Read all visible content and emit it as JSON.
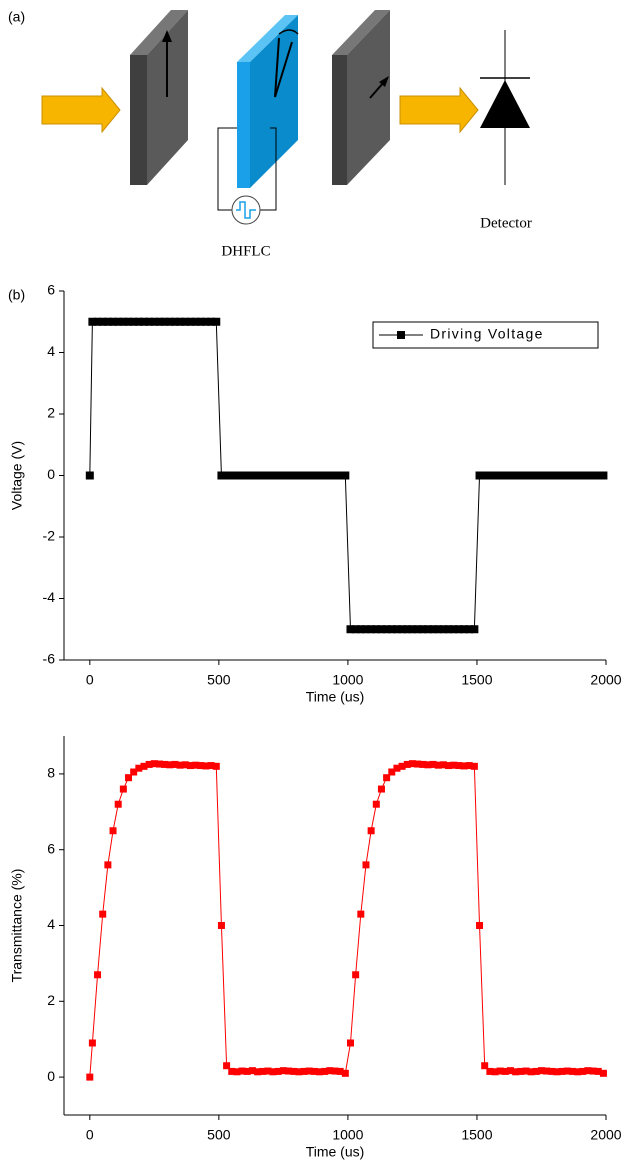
{
  "diagram": {
    "panel_label": "(a)",
    "labels": [
      "DHFLC",
      "Detector"
    ]
  },
  "chart_data": [
    {
      "type": "line",
      "panel_label": "(b)",
      "x_label": "Time (us)",
      "y_label": "Voltage (V)",
      "xlim": [
        -100,
        2000
      ],
      "xticks": [
        0,
        500,
        1000,
        1500,
        2000
      ],
      "ylim": [
        -6,
        6
      ],
      "yticks": [
        -6,
        -4,
        -2,
        0,
        2,
        4,
        6
      ],
      "legend": "upper right",
      "x": [
        0,
        10,
        30,
        50,
        70,
        90,
        110,
        130,
        150,
        170,
        190,
        210,
        230,
        250,
        270,
        290,
        310,
        330,
        350,
        370,
        390,
        410,
        430,
        450,
        470,
        490,
        510,
        530,
        550,
        570,
        590,
        610,
        630,
        650,
        670,
        690,
        710,
        730,
        750,
        770,
        790,
        810,
        830,
        850,
        870,
        890,
        910,
        930,
        950,
        970,
        990,
        1010,
        1030,
        1050,
        1070,
        1090,
        1110,
        1130,
        1150,
        1170,
        1190,
        1210,
        1230,
        1250,
        1270,
        1290,
        1310,
        1330,
        1350,
        1370,
        1390,
        1410,
        1430,
        1450,
        1470,
        1490,
        1510,
        1530,
        1550,
        1570,
        1590,
        1610,
        1630,
        1650,
        1670,
        1690,
        1710,
        1730,
        1750,
        1770,
        1790,
        1810,
        1830,
        1850,
        1870,
        1890,
        1910,
        1930,
        1950,
        1970,
        1990
      ],
      "series": [
        {
          "name": "Driving Voltage",
          "color": "#000000",
          "values": [
            0,
            5,
            5,
            5,
            5,
            5,
            5,
            5,
            5,
            5,
            5,
            5,
            5,
            5,
            5,
            5,
            5,
            5,
            5,
            5,
            5,
            5,
            5,
            5,
            5,
            5,
            0,
            0,
            0,
            0,
            0,
            0,
            0,
            0,
            0,
            0,
            0,
            0,
            0,
            0,
            0,
            0,
            0,
            0,
            0,
            0,
            0,
            0,
            0,
            0,
            0,
            -5,
            -5,
            -5,
            -5,
            -5,
            -5,
            -5,
            -5,
            -5,
            -5,
            -5,
            -5,
            -5,
            -5,
            -5,
            -5,
            -5,
            -5,
            -5,
            -5,
            -5,
            -5,
            -5,
            -5,
            -5,
            0,
            0,
            0,
            0,
            0,
            0,
            0,
            0,
            0,
            0,
            0,
            0,
            0,
            0,
            0,
            0,
            0,
            0,
            0,
            0,
            0,
            0,
            0,
            0,
            0
          ]
        }
      ]
    },
    {
      "type": "line",
      "x_label": "Time (us)",
      "y_label": "Transmittance (%)",
      "xlim": [
        -100,
        2000
      ],
      "xticks": [
        0,
        500,
        1000,
        1500,
        2000
      ],
      "ylim": [
        -1,
        9
      ],
      "yticks": [
        0,
        2,
        4,
        6,
        8
      ],
      "x": [
        0,
        10,
        30,
        50,
        70,
        90,
        110,
        130,
        150,
        170,
        190,
        210,
        230,
        250,
        270,
        290,
        310,
        330,
        350,
        370,
        390,
        410,
        430,
        450,
        470,
        490,
        510,
        530,
        550,
        570,
        590,
        610,
        630,
        650,
        670,
        690,
        710,
        730,
        750,
        770,
        790,
        810,
        830,
        850,
        870,
        890,
        910,
        930,
        950,
        970,
        990,
        1010,
        1030,
        1050,
        1070,
        1090,
        1110,
        1130,
        1150,
        1170,
        1190,
        1210,
        1230,
        1250,
        1270,
        1290,
        1310,
        1330,
        1350,
        1370,
        1390,
        1410,
        1430,
        1450,
        1470,
        1490,
        1510,
        1530,
        1550,
        1570,
        1590,
        1610,
        1630,
        1650,
        1670,
        1690,
        1710,
        1730,
        1750,
        1770,
        1790,
        1810,
        1830,
        1850,
        1870,
        1890,
        1910,
        1930,
        1950,
        1970,
        1990
      ],
      "color": "#ff0000",
      "values": [
        0,
        0.9,
        2.7,
        4.3,
        5.6,
        6.5,
        7.2,
        7.6,
        7.9,
        8.05,
        8.15,
        8.2,
        8.25,
        8.27,
        8.26,
        8.25,
        8.24,
        8.25,
        8.23,
        8.24,
        8.22,
        8.23,
        8.22,
        8.21,
        8.22,
        8.2,
        4.0,
        0.3,
        0.15,
        0.14,
        0.16,
        0.15,
        0.17,
        0.14,
        0.15,
        0.16,
        0.14,
        0.15,
        0.17,
        0.16,
        0.15,
        0.14,
        0.15,
        0.16,
        0.15,
        0.14,
        0.15,
        0.17,
        0.16,
        0.15,
        0.1,
        0.9,
        2.7,
        4.3,
        5.6,
        6.5,
        7.2,
        7.6,
        7.9,
        8.05,
        8.15,
        8.2,
        8.25,
        8.27,
        8.26,
        8.25,
        8.24,
        8.25,
        8.23,
        8.24,
        8.22,
        8.23,
        8.22,
        8.21,
        8.22,
        8.2,
        4.0,
        0.3,
        0.15,
        0.14,
        0.16,
        0.15,
        0.17,
        0.14,
        0.15,
        0.16,
        0.14,
        0.15,
        0.17,
        0.16,
        0.15,
        0.14,
        0.15,
        0.16,
        0.15,
        0.14,
        0.15,
        0.17,
        0.16,
        0.15,
        0.1
      ]
    }
  ]
}
